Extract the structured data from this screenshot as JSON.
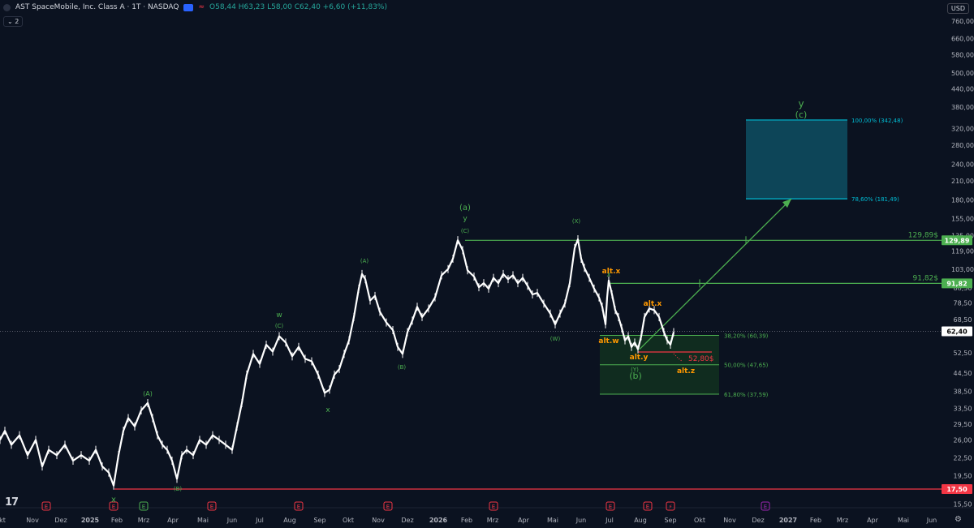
{
  "header": {
    "title": "AST SpaceMobile, Inc. Class A · 1T · NASDAQ",
    "ohlc": "O58,44 H63,23 L58,00 C62,40 +6,60 (+11,83%)",
    "indicator_count": "2",
    "currency": "USD"
  },
  "colors": {
    "background": "#0b1220",
    "green": "#4caf50",
    "red": "#f23645",
    "orange": "#ff9800",
    "cyan": "#00bcd4",
    "candle": "#ffffff"
  },
  "chart_data": {
    "type": "candlestick",
    "y_scale": "log",
    "y_ticks": [
      "760,00",
      "660,00",
      "580,00",
      "500,00",
      "440,00",
      "380,00",
      "320,00",
      "280,00",
      "240,00",
      "210,00",
      "180,00",
      "155,00",
      "135,00",
      "119,00",
      "103,00",
      "88,50",
      "78,50",
      "68,50",
      "62,40",
      "52,50",
      "44,50",
      "38,50",
      "33,50",
      "29,50",
      "26,00",
      "22,50",
      "19,50",
      "17,50",
      "15,50"
    ],
    "x_ticks": [
      "kt",
      "Nov",
      "Dez",
      "2025",
      "Feb",
      "Mrz",
      "Apr",
      "Mai",
      "Jun",
      "Jul",
      "Aug",
      "Sep",
      "Okt",
      "Nov",
      "Dez",
      "2026",
      "Feb",
      "Mrz",
      "Apr",
      "Mai",
      "Jun",
      "Jul",
      "Aug",
      "Sep",
      "Okt",
      "Nov",
      "Dez",
      "2027",
      "Feb",
      "Mrz",
      "Apr",
      "Mai",
      "Jun"
    ],
    "price_path": [
      [
        0,
        26
      ],
      [
        6,
        28
      ],
      [
        14,
        25
      ],
      [
        24,
        27
      ],
      [
        34,
        23
      ],
      [
        44,
        26
      ],
      [
        52,
        21
      ],
      [
        60,
        24
      ],
      [
        70,
        23
      ],
      [
        80,
        25
      ],
      [
        90,
        22
      ],
      [
        100,
        23
      ],
      [
        110,
        22
      ],
      [
        118,
        24
      ],
      [
        126,
        21
      ],
      [
        134,
        20
      ],
      [
        140,
        18
      ],
      [
        146,
        23
      ],
      [
        152,
        28
      ],
      [
        158,
        31
      ],
      [
        166,
        29
      ],
      [
        174,
        33
      ],
      [
        182,
        35
      ],
      [
        188,
        31
      ],
      [
        194,
        27
      ],
      [
        200,
        25
      ],
      [
        206,
        24
      ],
      [
        212,
        22
      ],
      [
        218,
        19
      ],
      [
        224,
        23
      ],
      [
        230,
        24
      ],
      [
        238,
        23
      ],
      [
        246,
        26
      ],
      [
        254,
        25
      ],
      [
        262,
        27
      ],
      [
        270,
        26
      ],
      [
        278,
        25
      ],
      [
        286,
        24
      ],
      [
        292,
        29
      ],
      [
        298,
        35
      ],
      [
        304,
        44
      ],
      [
        312,
        52
      ],
      [
        320,
        48
      ],
      [
        328,
        56
      ],
      [
        336,
        53
      ],
      [
        344,
        60
      ],
      [
        352,
        57
      ],
      [
        360,
        51
      ],
      [
        368,
        55
      ],
      [
        376,
        50
      ],
      [
        384,
        49
      ],
      [
        392,
        44
      ],
      [
        400,
        38
      ],
      [
        406,
        39
      ],
      [
        412,
        44
      ],
      [
        418,
        46
      ],
      [
        424,
        52
      ],
      [
        430,
        58
      ],
      [
        436,
        70
      ],
      [
        442,
        88
      ],
      [
        446,
        99
      ],
      [
        450,
        95
      ],
      [
        456,
        80
      ],
      [
        462,
        83
      ],
      [
        468,
        73
      ],
      [
        476,
        67
      ],
      [
        484,
        63
      ],
      [
        490,
        55
      ],
      [
        496,
        52
      ],
      [
        502,
        62
      ],
      [
        508,
        68
      ],
      [
        514,
        76
      ],
      [
        520,
        70
      ],
      [
        528,
        75
      ],
      [
        536,
        82
      ],
      [
        544,
        98
      ],
      [
        552,
        103
      ],
      [
        558,
        112
      ],
      [
        564,
        130
      ],
      [
        570,
        120
      ],
      [
        576,
        102
      ],
      [
        584,
        97
      ],
      [
        590,
        89
      ],
      [
        596,
        92
      ],
      [
        602,
        88
      ],
      [
        608,
        96
      ],
      [
        614,
        92
      ],
      [
        620,
        99
      ],
      [
        626,
        95
      ],
      [
        632,
        98
      ],
      [
        638,
        92
      ],
      [
        644,
        96
      ],
      [
        650,
        90
      ],
      [
        656,
        84
      ],
      [
        662,
        85
      ],
      [
        670,
        78
      ],
      [
        678,
        72
      ],
      [
        684,
        66
      ],
      [
        690,
        72
      ],
      [
        696,
        78
      ],
      [
        702,
        92
      ],
      [
        708,
        122
      ],
      [
        712,
        131
      ],
      [
        716,
        112
      ],
      [
        720,
        104
      ],
      [
        726,
        96
      ],
      [
        732,
        88
      ],
      [
        738,
        82
      ],
      [
        742,
        76
      ],
      [
        746,
        66
      ],
      [
        748,
        82
      ],
      [
        750,
        94
      ],
      [
        754,
        84
      ],
      [
        758,
        74
      ],
      [
        762,
        70
      ],
      [
        766,
        64
      ],
      [
        770,
        58
      ],
      [
        774,
        60
      ],
      [
        778,
        55
      ],
      [
        782,
        57
      ],
      [
        786,
        54
      ],
      [
        790,
        60
      ],
      [
        794,
        70
      ],
      [
        800,
        75
      ],
      [
        806,
        74
      ],
      [
        812,
        70
      ],
      [
        818,
        62
      ],
      [
        822,
        58
      ],
      [
        826,
        56
      ],
      [
        830,
        62
      ]
    ],
    "levels": [
      {
        "label": "129,89$",
        "badge": "129,89",
        "price": 129.89,
        "color": "#4caf50"
      },
      {
        "label": "91,82$",
        "badge": "91,82",
        "price": 91.82,
        "color": "#4caf50"
      },
      {
        "label": "",
        "badge": "17,50",
        "price": 17.5,
        "color": "#f23645"
      },
      {
        "label": "52,80$",
        "badge": "",
        "price": 52.8,
        "color": "#f23645"
      }
    ],
    "fib_zone": [
      {
        "label": "38,20% (60,39)",
        "price": 60.39
      },
      {
        "label": "50,00% (47,65)",
        "price": 47.65
      },
      {
        "label": "61,80% (37,59)",
        "price": 37.59
      }
    ],
    "target_zone": [
      {
        "label": "100,00% (342,48)",
        "price": 342.48
      },
      {
        "label": "78,60% (181,49)",
        "price": 181.49
      }
    ],
    "current_price": {
      "label": "62,40",
      "price": 62.4
    },
    "wave_labels": {
      "green": [
        "(A)",
        "(B)",
        "x",
        "w",
        "(C)",
        "(A)",
        "(B)",
        "x",
        "(a)",
        "y",
        "(C)",
        "(X)",
        "(W)",
        "x",
        "(Y)",
        "(b)",
        "y",
        "(c)"
      ],
      "orange": [
        "alt.x",
        "alt.w",
        "alt.y",
        "alt.x",
        "alt.z"
      ]
    }
  }
}
